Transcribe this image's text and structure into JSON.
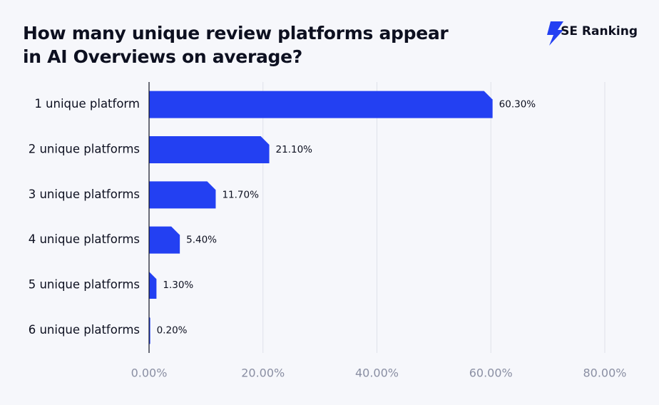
{
  "brand": "SE Ranking",
  "chart_data": {
    "type": "bar",
    "orientation": "horizontal",
    "title": "How many unique review platforms appear in AI Overviews on average?",
    "categories": [
      "1 unique platform",
      "2 unique platforms",
      "3 unique platforms",
      "4 unique platforms",
      "5 unique platforms",
      "6 unique platforms"
    ],
    "values": [
      60.3,
      21.1,
      11.7,
      5.4,
      1.3,
      0.2
    ],
    "value_labels": [
      "60.30%",
      "21.10%",
      "11.70%",
      "5.40%",
      "1.30%",
      "0.20%"
    ],
    "color": "#2340f2",
    "xlim": [
      0,
      80
    ],
    "xticks": [
      {
        "value": 0,
        "label": "0.00%"
      },
      {
        "value": 20,
        "label": "20.00%"
      },
      {
        "value": 40,
        "label": "40.00%"
      },
      {
        "value": 60,
        "label": "60.00%"
      },
      {
        "value": 80,
        "label": "80.00%"
      }
    ],
    "grid": true
  }
}
